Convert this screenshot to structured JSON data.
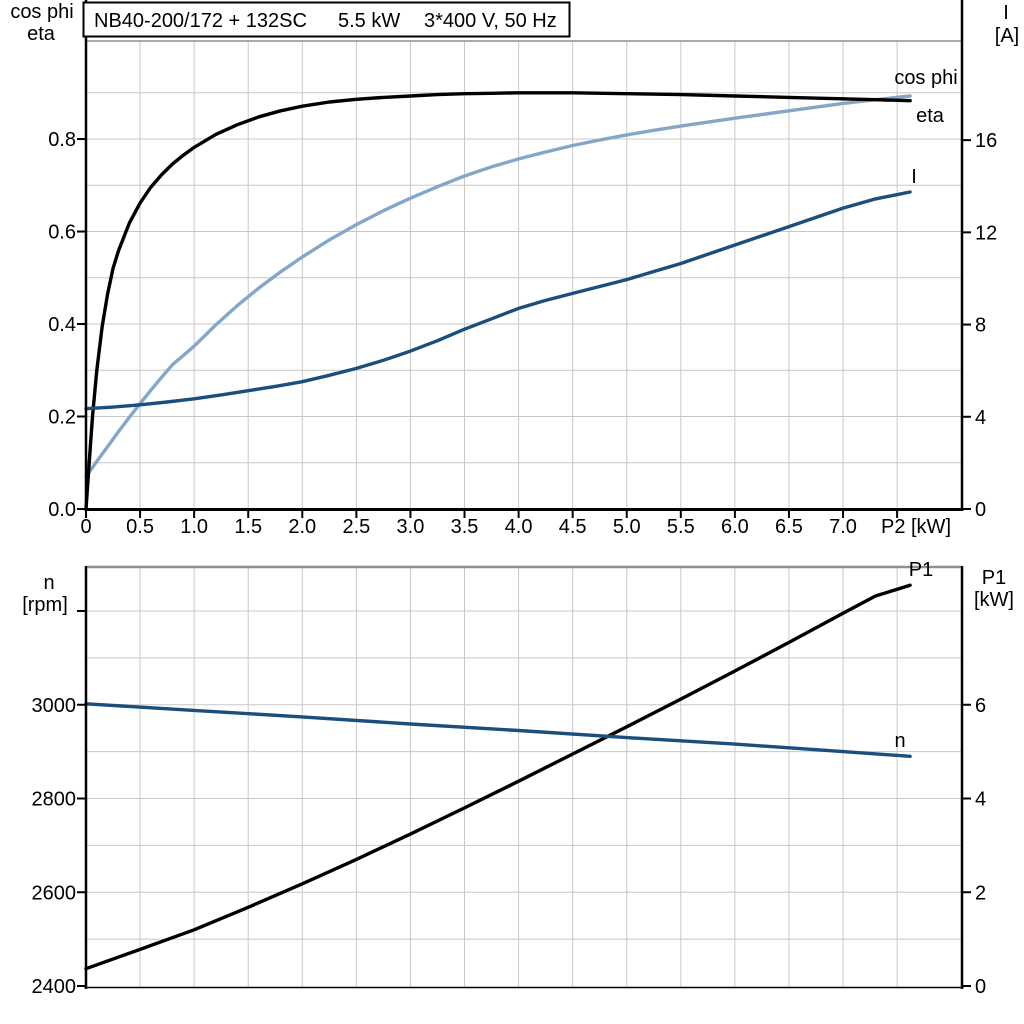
{
  "colors": {
    "black": "#000000",
    "light_blue": "#83a7c9",
    "dark_blue": "#1c4e7d",
    "grid": "#c8c8c8",
    "frame_gray": "#8f8f8f",
    "background": "#ffffff"
  },
  "title_box": {
    "model": "NB40-200/172 + 132SC",
    "power": "5.5 kW",
    "supply": "3*400 V, 50 Hz"
  },
  "chart_data": [
    {
      "type": "line",
      "panel": "top",
      "title": "NB40-200/172 + 132SC  5.5 kW  3*400 V, 50 Hz",
      "x_axis": {
        "label": "P2 [kW]",
        "min": 0,
        "max": 8.1,
        "tick_values": [
          0,
          0.5,
          1,
          1.5,
          2,
          2.5,
          3,
          3.5,
          4,
          4.5,
          5,
          5.5,
          6,
          6.5,
          7
        ],
        "tick_labels": [
          "0",
          "0.5",
          "1.0",
          "1.5",
          "2.0",
          "2.5",
          "3.0",
          "3.5",
          "4.0",
          "4.5",
          "5.0",
          "5.5",
          "6.0",
          "6.5",
          "7.0"
        ],
        "extra_tick_values": [
          7.5
        ],
        "grid_values": [
          0.5,
          1,
          1.5,
          2,
          2.5,
          3,
          3.5,
          4,
          4.5,
          5,
          5.5,
          6,
          6.5,
          7,
          7.5
        ]
      },
      "y_left": {
        "title_lines": [
          "cos phi",
          "eta"
        ],
        "min": 0,
        "max": 1.012,
        "tick_values": [
          0.8,
          0.6,
          0.4,
          0.2,
          0.0
        ],
        "tick_labels": [
          "0.8",
          "0.6",
          "0.4",
          "0.2",
          "0.0"
        ],
        "extra_tick_values": [],
        "grid_values": [
          0.1,
          0.2,
          0.3,
          0.4,
          0.5,
          0.6,
          0.7,
          0.8,
          0.9
        ]
      },
      "y_right": {
        "title_lines": [
          "I",
          "[A]"
        ],
        "min": 0,
        "max": 20.3,
        "tick_values": [
          16,
          12,
          8,
          4,
          0
        ],
        "tick_labels": [
          "16",
          "12",
          "8",
          "4",
          "0"
        ],
        "extra_tick_values": []
      },
      "series": [
        {
          "name": "cos phi",
          "axis": "left",
          "color_key": "light_blue",
          "points": [
            [
              0,
              0.07
            ],
            [
              0.1,
              0.103
            ],
            [
              0.2,
              0.135
            ],
            [
              0.3,
              0.167
            ],
            [
              0.4,
              0.198
            ],
            [
              0.5,
              0.228
            ],
            [
              0.6,
              0.257
            ],
            [
              0.7,
              0.285
            ],
            [
              0.8,
              0.312
            ],
            [
              0.9,
              0.332
            ],
            [
              1.0,
              0.352
            ],
            [
              1.2,
              0.398
            ],
            [
              1.4,
              0.44
            ],
            [
              1.6,
              0.478
            ],
            [
              1.8,
              0.513
            ],
            [
              2.0,
              0.545
            ],
            [
              2.25,
              0.582
            ],
            [
              2.5,
              0.615
            ],
            [
              2.75,
              0.645
            ],
            [
              3.0,
              0.672
            ],
            [
              3.25,
              0.697
            ],
            [
              3.5,
              0.72
            ],
            [
              3.75,
              0.74
            ],
            [
              4.0,
              0.757
            ],
            [
              4.25,
              0.772
            ],
            [
              4.5,
              0.786
            ],
            [
              4.75,
              0.798
            ],
            [
              5.0,
              0.809
            ],
            [
              5.25,
              0.819
            ],
            [
              5.5,
              0.828
            ],
            [
              6.0,
              0.845
            ],
            [
              6.5,
              0.861
            ],
            [
              7.0,
              0.877
            ],
            [
              7.3,
              0.885
            ],
            [
              7.62,
              0.893
            ]
          ]
        },
        {
          "name": "eta",
          "axis": "left",
          "color_key": "black",
          "points": [
            [
              0,
              0
            ],
            [
              0.03,
              0.1
            ],
            [
              0.06,
              0.2
            ],
            [
              0.1,
              0.3
            ],
            [
              0.15,
              0.395
            ],
            [
              0.2,
              0.465
            ],
            [
              0.25,
              0.52
            ],
            [
              0.3,
              0.558
            ],
            [
              0.4,
              0.618
            ],
            [
              0.5,
              0.662
            ],
            [
              0.6,
              0.696
            ],
            [
              0.7,
              0.723
            ],
            [
              0.8,
              0.746
            ],
            [
              0.9,
              0.765
            ],
            [
              1.0,
              0.782
            ],
            [
              1.2,
              0.81
            ],
            [
              1.4,
              0.831
            ],
            [
              1.6,
              0.848
            ],
            [
              1.8,
              0.861
            ],
            [
              2.0,
              0.871
            ],
            [
              2.25,
              0.88
            ],
            [
              2.5,
              0.886
            ],
            [
              2.75,
              0.89
            ],
            [
              3.0,
              0.893
            ],
            [
              3.25,
              0.896
            ],
            [
              3.5,
              0.898
            ],
            [
              3.75,
              0.899
            ],
            [
              4.0,
              0.9
            ],
            [
              4.25,
              0.9
            ],
            [
              4.5,
              0.9
            ],
            [
              5.0,
              0.898
            ],
            [
              5.5,
              0.896
            ],
            [
              6.0,
              0.893
            ],
            [
              6.5,
              0.89
            ],
            [
              7.0,
              0.887
            ],
            [
              7.3,
              0.885
            ],
            [
              7.62,
              0.883
            ]
          ]
        },
        {
          "name": "I",
          "axis": "right",
          "color_key": "dark_blue",
          "points": [
            [
              0,
              4.35
            ],
            [
              0.25,
              4.42
            ],
            [
              0.5,
              4.52
            ],
            [
              0.75,
              4.64
            ],
            [
              1.0,
              4.78
            ],
            [
              1.25,
              4.95
            ],
            [
              1.5,
              5.13
            ],
            [
              1.75,
              5.32
            ],
            [
              2.0,
              5.52
            ],
            [
              2.25,
              5.8
            ],
            [
              2.5,
              6.1
            ],
            [
              2.75,
              6.45
            ],
            [
              3.0,
              6.85
            ],
            [
              3.25,
              7.3
            ],
            [
              3.5,
              7.8
            ],
            [
              3.75,
              8.25
            ],
            [
              4.0,
              8.7
            ],
            [
              4.25,
              9.05
            ],
            [
              4.5,
              9.35
            ],
            [
              4.75,
              9.65
            ],
            [
              5.0,
              9.95
            ],
            [
              5.25,
              10.3
            ],
            [
              5.5,
              10.65
            ],
            [
              6.0,
              11.45
            ],
            [
              6.5,
              12.25
            ],
            [
              7.0,
              13.05
            ],
            [
              7.3,
              13.45
            ],
            [
              7.62,
              13.75
            ]
          ]
        }
      ]
    },
    {
      "type": "line",
      "panel": "bottom",
      "x_axis": {
        "label": "",
        "min": 0,
        "max": 8.1,
        "tick_values": [],
        "tick_labels": [],
        "extra_tick_values": [],
        "grid_values": [
          0.5,
          1,
          1.5,
          2,
          2.5,
          3,
          3.5,
          4,
          4.5,
          5,
          5.5,
          6,
          6.5,
          7,
          7.5
        ]
      },
      "y_left": {
        "title_lines": [
          "n",
          "[rpm]"
        ],
        "min": 2400,
        "max": 3296,
        "tick_values": [
          3000,
          2800,
          2600,
          2400
        ],
        "tick_labels": [
          "3000",
          "2800",
          "2600",
          "2400"
        ],
        "extra_tick_values": [
          3200
        ],
        "grid_values": [
          2500,
          2600,
          2700,
          2800,
          2900,
          3000,
          3100,
          3200
        ]
      },
      "y_right": {
        "title_lines": [
          "P1",
          "[kW]"
        ],
        "min": 0,
        "max": 8.96,
        "tick_values": [
          6,
          4,
          2,
          0
        ],
        "tick_labels": [
          "6",
          "4",
          "2",
          "0"
        ],
        "extra_tick_values": []
      },
      "series": [
        {
          "name": "P1",
          "axis": "right",
          "color_key": "black",
          "points": [
            [
              0,
              0.37
            ],
            [
              0.5,
              0.78
            ],
            [
              1.0,
              1.2
            ],
            [
              1.5,
              1.68
            ],
            [
              2.0,
              2.18
            ],
            [
              2.5,
              2.7
            ],
            [
              3.0,
              3.24
            ],
            [
              3.5,
              3.8
            ],
            [
              4.0,
              4.37
            ],
            [
              4.5,
              4.95
            ],
            [
              5.0,
              5.53
            ],
            [
              5.5,
              6.12
            ],
            [
              6.0,
              6.72
            ],
            [
              6.5,
              7.33
            ],
            [
              7.0,
              7.95
            ],
            [
              7.3,
              8.32
            ],
            [
              7.62,
              8.55
            ]
          ]
        },
        {
          "name": "n",
          "axis": "left",
          "color_key": "dark_blue",
          "points": [
            [
              0,
              3002
            ],
            [
              1.0,
              2988
            ],
            [
              2.0,
              2974
            ],
            [
              3.0,
              2959
            ],
            [
              4.0,
              2945
            ],
            [
              5.0,
              2930
            ],
            [
              6.0,
              2916
            ],
            [
              7.0,
              2900
            ],
            [
              7.62,
              2890
            ]
          ]
        }
      ]
    }
  ]
}
